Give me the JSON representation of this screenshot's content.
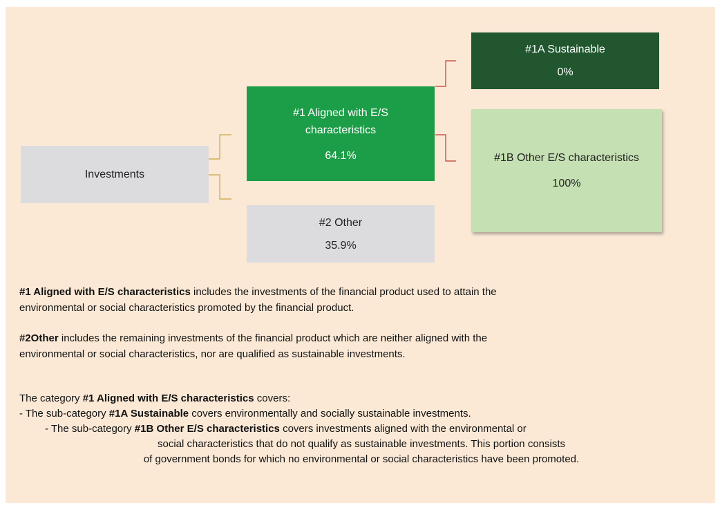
{
  "nodes": {
    "investments": {
      "label": "Investments"
    },
    "aligned": {
      "label": "#1 Aligned with E/S characteristics",
      "value": "64.1%"
    },
    "other": {
      "label": "#2 Other",
      "value": "35.9%"
    },
    "sustainable": {
      "label": "#1A Sustainable",
      "value": "0%"
    },
    "other_es": {
      "label": "#1B Other E/S characteristics",
      "value": "100%"
    }
  },
  "text_lines": [
    [
      {
        "text": "#1 Aligned with E/S characteristics",
        "bold": true
      },
      {
        "text": " includes the investments of the financial product used to attain the",
        "bold": false
      }
    ],
    [
      {
        "text": "environmental or social characteristics promoted by the financial product.",
        "bold": false
      }
    ],
    [
      {
        "text": "#2Other",
        "bold": true
      },
      {
        "text": " includes the remaining investments of the financial product which are neither aligned with the",
        "bold": false
      }
    ],
    [
      {
        "text": "environmental or social characteristics, nor are qualified as sustainable investments.",
        "bold": false
      }
    ],
    [
      {
        "text": "The category ",
        "bold": false
      },
      {
        "text": "#1 Aligned with E/S characteristics",
        "bold": true
      },
      {
        "text": " covers:",
        "bold": false
      }
    ],
    [
      {
        "text": "- The sub-category ",
        "bold": false
      },
      {
        "text": "#1A Sustainable",
        "bold": true
      },
      {
        "text": " covers environmentally and socially sustainable investments.",
        "bold": false
      }
    ],
    [
      {
        "text": "- The sub-category ",
        "bold": false
      },
      {
        "text": "#1B Other E/S characteristics",
        "bold": true
      },
      {
        "text": " covers investments aligned with the environmental or",
        "bold": false
      }
    ],
    [
      {
        "text": "social characteristics that do not qualify as sustainable investments. This portion consists",
        "bold": false
      }
    ],
    [
      {
        "text": "of government bonds for which no environmental or social characteristics have been promoted.",
        "bold": false
      }
    ]
  ]
}
